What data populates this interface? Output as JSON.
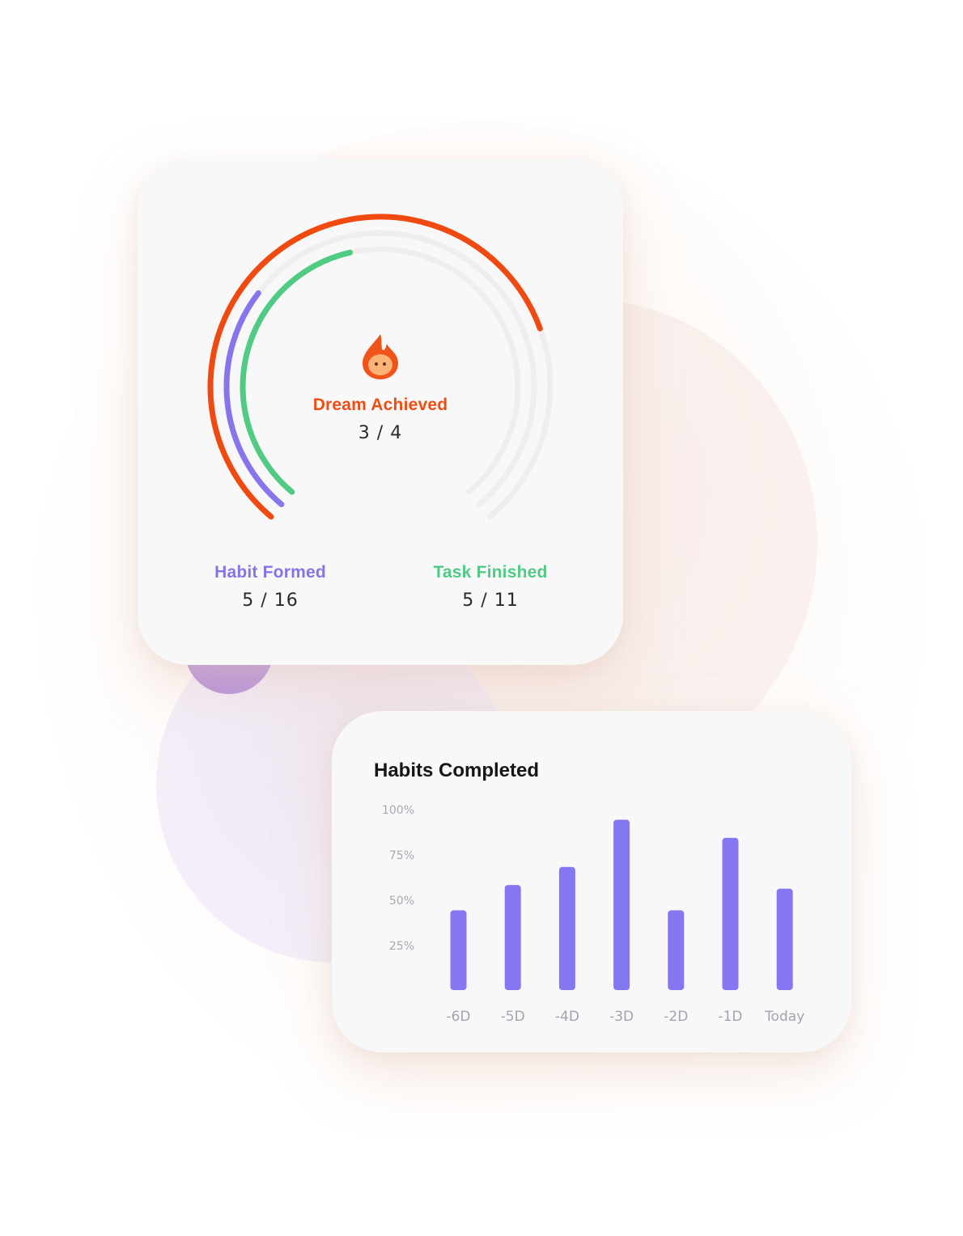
{
  "progress_card": {
    "center": {
      "label": "Dream Achieved",
      "value": "3 / 4",
      "icon": "flame-mascot-icon"
    },
    "habit": {
      "label": "Habit Formed",
      "value": "5 / 16"
    },
    "task": {
      "label": "Task Finished",
      "value": "5 / 11"
    },
    "rings": [
      {
        "name_ref": "dream",
        "fraction": 0.75,
        "color": "#f04a10"
      },
      {
        "name_ref": "habit",
        "fraction": 0.3125,
        "color": "#8576ee"
      },
      {
        "name_ref": "task",
        "fraction": 0.4545,
        "color": "#4fcb84"
      }
    ],
    "track_color": "#eeeeee"
  },
  "chart_data": {
    "type": "bar",
    "title": "Habits Completed",
    "categories": [
      "-6D",
      "-5D",
      "-4D",
      "-3D",
      "-2D",
      "-1D",
      "Today"
    ],
    "values": [
      44,
      58,
      68,
      94,
      44,
      84,
      56
    ],
    "yticks": [
      "100%",
      "75%",
      "50%",
      "25%"
    ],
    "ytick_values": [
      100,
      75,
      50,
      25
    ],
    "ylim": [
      0,
      100
    ],
    "bar_color": "#8577f1",
    "grid": false
  }
}
